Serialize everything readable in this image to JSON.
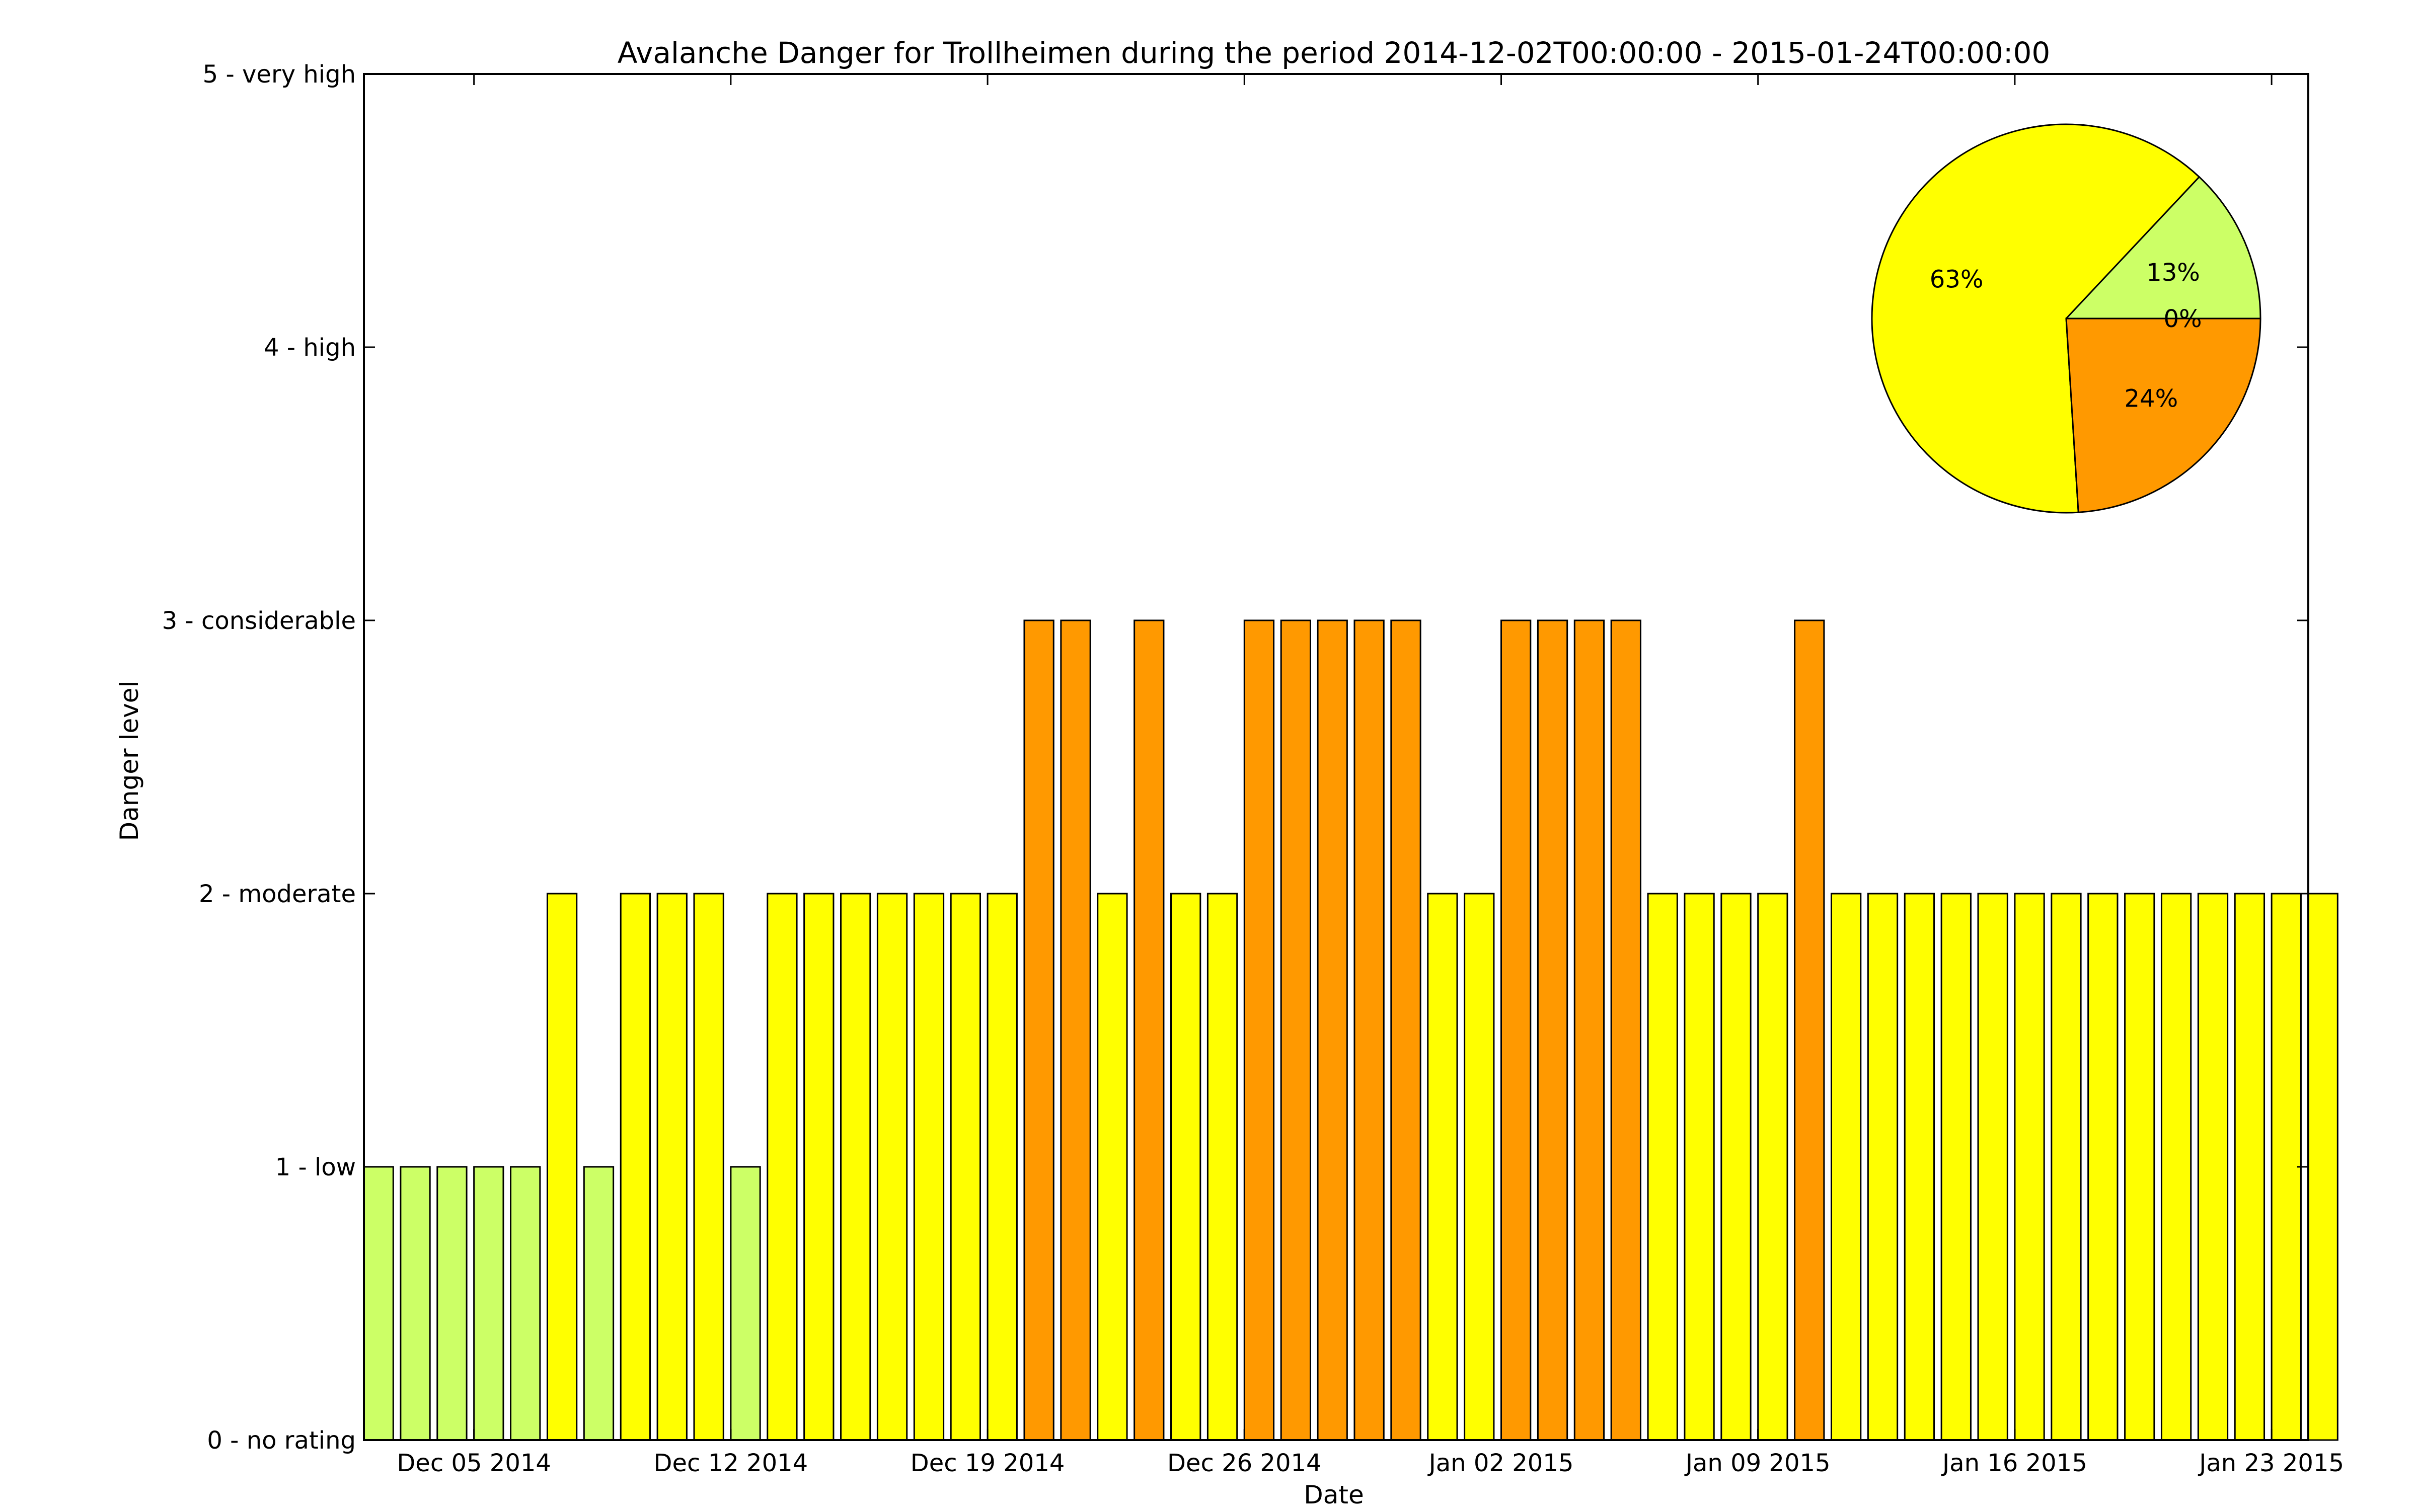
{
  "chart_data": {
    "type": "bar",
    "title": "Avalanche Danger for Trollheimen during the period 2014-12-02T00:00:00 - 2015-01-24T00:00:00",
    "xlabel": "Date",
    "ylabel": "Danger level",
    "ylim": [
      0,
      5
    ],
    "yticks": [
      {
        "value": 0,
        "label": "0 - no rating"
      },
      {
        "value": 1,
        "label": "1 - low"
      },
      {
        "value": 2,
        "label": "2 - moderate"
      },
      {
        "value": 3,
        "label": "3 - considerable"
      },
      {
        "value": 4,
        "label": "4 - high"
      },
      {
        "value": 5,
        "label": "5 - very high"
      }
    ],
    "xlim": [
      "2014-12-02",
      "2015-01-24"
    ],
    "xticks": [
      {
        "date": "2014-12-05",
        "label": "Dec 05 2014"
      },
      {
        "date": "2014-12-12",
        "label": "Dec 12 2014"
      },
      {
        "date": "2014-12-19",
        "label": "Dec 19 2014"
      },
      {
        "date": "2014-12-26",
        "label": "Dec 26 2014"
      },
      {
        "date": "2015-01-02",
        "label": "Jan 02 2015"
      },
      {
        "date": "2015-01-09",
        "label": "Jan 09 2015"
      },
      {
        "date": "2015-01-16",
        "label": "Jan 16 2015"
      },
      {
        "date": "2015-01-23",
        "label": "Jan 23 2015"
      }
    ],
    "level_colors": {
      "1": "#ccff66",
      "2": "#ffff00",
      "3": "#ff9900",
      "4": "#ff0000",
      "5": "#000000"
    },
    "start_date": "2014-12-02",
    "values": [
      1,
      1,
      1,
      1,
      1,
      2,
      1,
      2,
      2,
      2,
      1,
      2,
      2,
      2,
      2,
      2,
      2,
      2,
      3,
      3,
      2,
      3,
      2,
      2,
      3,
      3,
      3,
      3,
      3,
      2,
      2,
      3,
      3,
      3,
      3,
      2,
      2,
      2,
      2,
      3,
      2,
      2,
      2,
      2,
      2,
      2,
      2,
      2,
      2,
      2,
      2,
      2,
      2,
      2
    ],
    "grid": false,
    "inset_pie": {
      "type": "pie",
      "position": "top-right",
      "slices": [
        {
          "label": "13%",
          "value": 13,
          "color": "#ccff66"
        },
        {
          "label": "63%",
          "value": 63,
          "color": "#ffff00"
        },
        {
          "label": "24%",
          "value": 24,
          "color": "#ff9900"
        },
        {
          "label": "0%",
          "value": 0,
          "color": "#ff0000"
        }
      ]
    }
  }
}
